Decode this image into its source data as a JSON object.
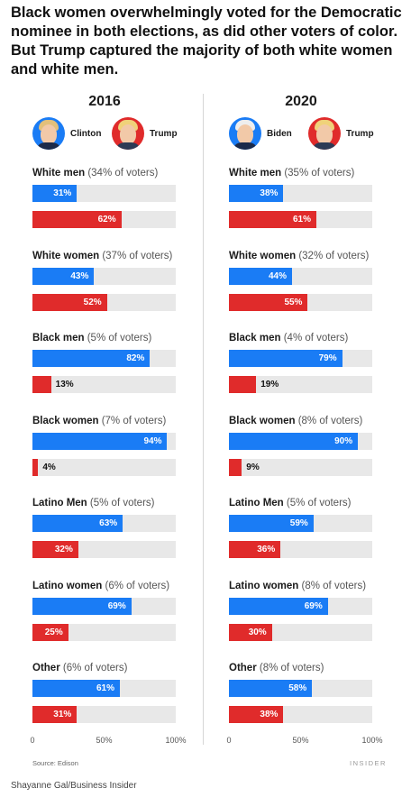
{
  "title": "Black women overwhelmingly voted for the Democratic nominee in both elections, as did other voters of color. But Trump captured the majority of both white women and white men.",
  "colors": {
    "democrat": "#1a7cf5",
    "republican": "#e02b2b",
    "track": "#e8e8e8"
  },
  "source": "Source: Edison",
  "brand": "INSIDER",
  "credit": "Shayanne Gal/Business Insider",
  "chart_data": [
    {
      "type": "bar",
      "title": "2016",
      "candidates": [
        {
          "name": "Clinton",
          "party": "democrat",
          "icon": "clinton-portrait"
        },
        {
          "name": "Trump",
          "party": "republican",
          "icon": "trump-portrait"
        }
      ],
      "categories": [
        "White men",
        "White women",
        "Black men",
        "Black women",
        "Latino Men",
        "Latino women",
        "Other"
      ],
      "category_notes": [
        "(34% of voters)",
        "(37% of voters)",
        "(5% of voters)",
        "(7% of voters)",
        "(5% of voters)",
        "(6% of voters)",
        "(6% of voters)"
      ],
      "series": [
        {
          "name": "Clinton",
          "values": [
            31,
            43,
            82,
            94,
            63,
            69,
            61
          ],
          "labels": [
            "31%",
            "43%",
            "82%",
            "94%",
            "63%",
            "69%",
            "61%"
          ]
        },
        {
          "name": "Trump",
          "values": [
            62,
            52,
            13,
            4,
            32,
            25,
            31
          ],
          "labels": [
            "62%",
            "52%",
            "13%",
            "4%",
            "32%",
            "25%",
            "31%"
          ]
        }
      ],
      "xlim": [
        0,
        100
      ],
      "xticks": [
        "0",
        "50%",
        "100%"
      ]
    },
    {
      "type": "bar",
      "title": "2020",
      "candidates": [
        {
          "name": "Biden",
          "party": "democrat",
          "icon": "biden-portrait"
        },
        {
          "name": "Trump",
          "party": "republican",
          "icon": "trump-portrait"
        }
      ],
      "categories": [
        "White men",
        "White women",
        "Black men",
        "Black women",
        "Latino Men",
        "Latino women",
        "Other"
      ],
      "category_notes": [
        "(35% of voters)",
        "(32% of voters)",
        "(4% of voters)",
        "(8% of voters)",
        "(5% of voters)",
        "(8% of voters)",
        "(8% of voters)"
      ],
      "series": [
        {
          "name": "Biden",
          "values": [
            38,
            44,
            79,
            90,
            59,
            69,
            58
          ],
          "labels": [
            "38%",
            "44%",
            "79%",
            "90%",
            "59%",
            "69%",
            "58%"
          ]
        },
        {
          "name": "Trump",
          "values": [
            61,
            55,
            19,
            9,
            36,
            30,
            38
          ],
          "labels": [
            "61%",
            "55%",
            "19%",
            "9%",
            "36%",
            "30%",
            "38%"
          ]
        }
      ],
      "xlim": [
        0,
        100
      ],
      "xticks": [
        "0",
        "50%",
        "100%"
      ]
    }
  ]
}
